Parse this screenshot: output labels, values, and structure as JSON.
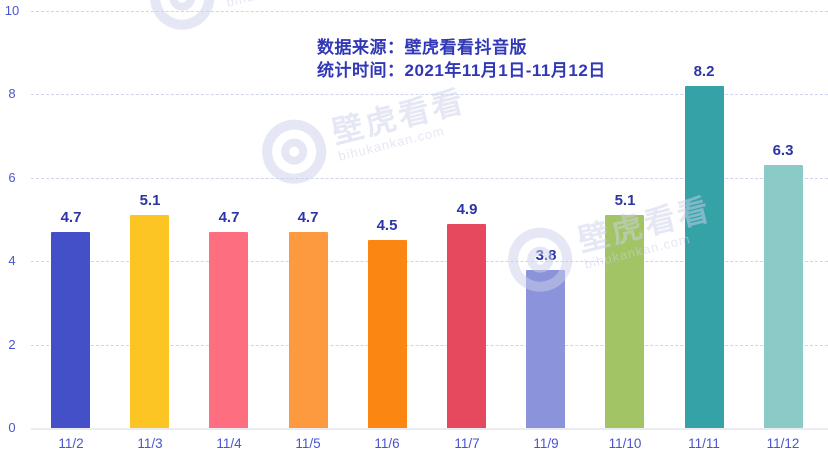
{
  "header": {
    "source_line": "数据来源：壁虎看看抖音版",
    "period_line": "统计时间：2021年11月1日-11月12日"
  },
  "watermark": {
    "brand": "壁虎看看",
    "domain": "bihukankan.com"
  },
  "chart_data": {
    "type": "bar",
    "title": "数据来源：壁虎看看抖音版",
    "subtitle": "统计时间：2021年11月1日-11月12日",
    "categories": [
      "11/2",
      "11/3",
      "11/4",
      "11/5",
      "11/6",
      "11/7",
      "11/9",
      "11/10",
      "11/11",
      "11/12"
    ],
    "values": [
      4.7,
      5.1,
      4.7,
      4.7,
      4.5,
      4.9,
      3.8,
      5.1,
      8.2,
      6.3
    ],
    "bar_colors": [
      "#4350c8",
      "#fdc524",
      "#fd6e80",
      "#fd9a40",
      "#fc8612",
      "#e6495e",
      "#8b93da",
      "#a3c464",
      "#35a2a8",
      "#8bcbc7"
    ],
    "xlabel": "",
    "ylabel": "",
    "ylim": [
      0,
      10
    ],
    "yticks": [
      0,
      2,
      4,
      6,
      8,
      10
    ],
    "grid": "horizontal-dashed",
    "legend": "none",
    "value_labels": "above-bars",
    "colors": {
      "title_text": "#3138b6",
      "value_label_text": "#2c35a3",
      "axis_label_text": "#4a55cc",
      "gridline": "#ced3ef",
      "baseline": "#ebecf1"
    }
  }
}
